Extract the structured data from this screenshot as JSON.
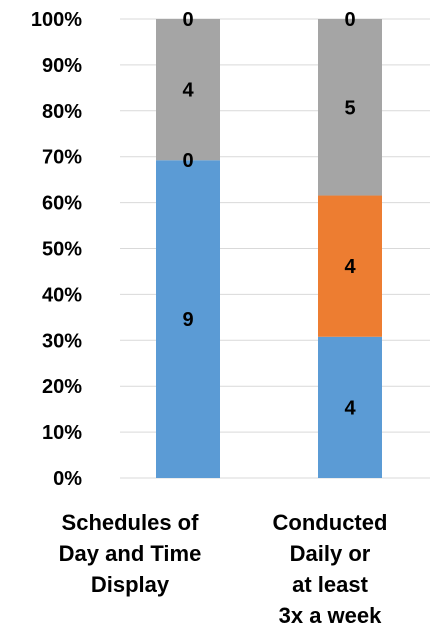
{
  "chart_data": {
    "type": "bar",
    "stacked": true,
    "percent_stacked": true,
    "categories": [
      [
        "Schedules of",
        "Day and Time",
        "Display"
      ],
      [
        "Conducted",
        "Daily or",
        "at least",
        "3x a week"
      ]
    ],
    "series": [
      {
        "color": "#5b9bd5",
        "values": [
          9,
          4
        ],
        "labels": [
          "9",
          "4"
        ]
      },
      {
        "color": "#ed7d31",
        "values": [
          0,
          4
        ],
        "labels": [
          "0",
          "4"
        ]
      },
      {
        "color": "#a5a5a5",
        "values": [
          4,
          5
        ],
        "labels": [
          "4",
          "5"
        ]
      },
      {
        "color": "#ffc000",
        "values": [
          0,
          0
        ],
        "labels": [
          "0",
          "0"
        ]
      }
    ],
    "y_ticks": [
      "0%",
      "10%",
      "20%",
      "30%",
      "40%",
      "50%",
      "60%",
      "70%",
      "80%",
      "90%",
      "100%"
    ],
    "ylim": [
      0,
      100
    ],
    "grid": true,
    "legend": "none",
    "title": "",
    "xlabel": "",
    "ylabel": ""
  }
}
